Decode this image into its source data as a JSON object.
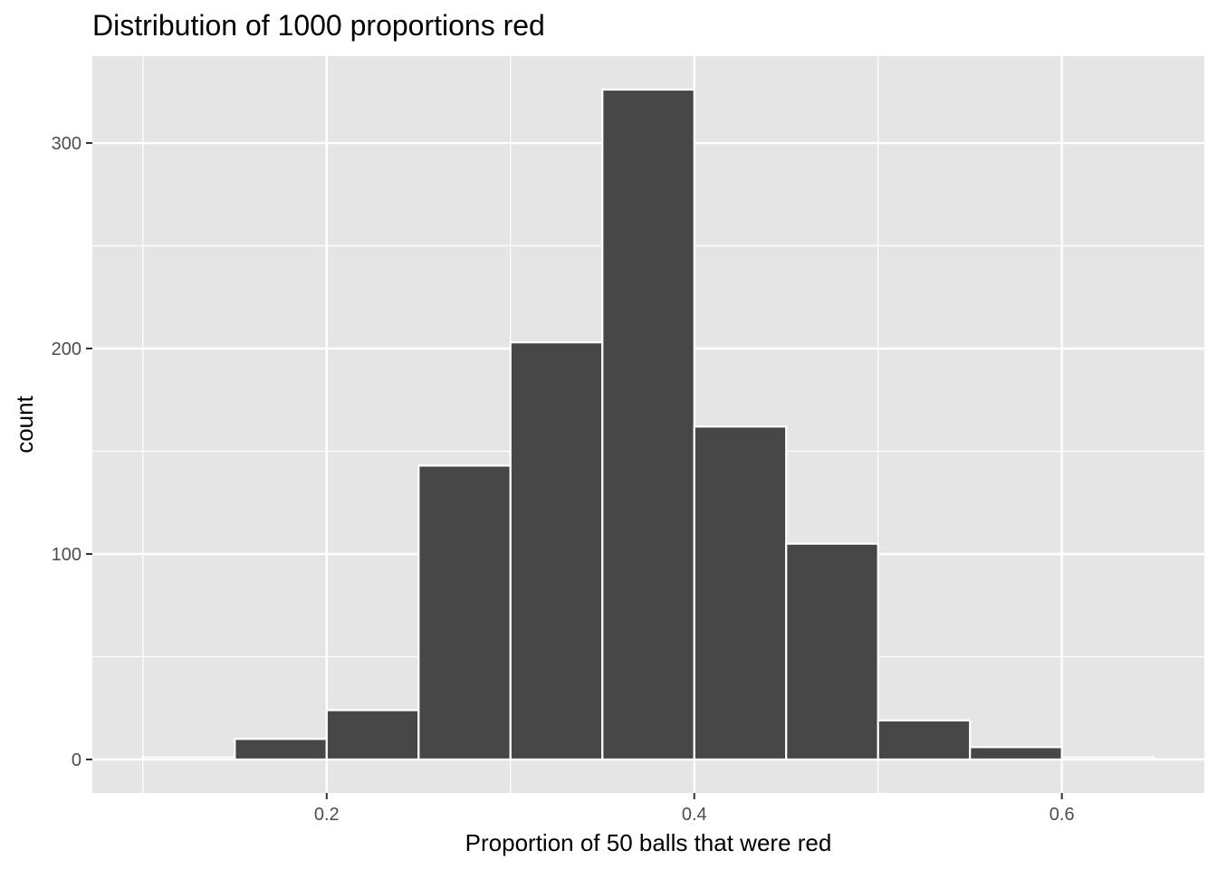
{
  "chart_data": {
    "type": "bar",
    "subtype": "histogram",
    "title": "Distribution of 1000 proportions red",
    "xlabel": "Proportion of 50 balls that were red",
    "ylabel": "count",
    "bin_width": 0.05,
    "bins": [
      {
        "x_start": 0.1,
        "x_end": 0.15,
        "count": 1
      },
      {
        "x_start": 0.15,
        "x_end": 0.2,
        "count": 10
      },
      {
        "x_start": 0.2,
        "x_end": 0.25,
        "count": 24
      },
      {
        "x_start": 0.25,
        "x_end": 0.3,
        "count": 143
      },
      {
        "x_start": 0.3,
        "x_end": 0.35,
        "count": 203
      },
      {
        "x_start": 0.35,
        "x_end": 0.4,
        "count": 326
      },
      {
        "x_start": 0.4,
        "x_end": 0.45,
        "count": 162
      },
      {
        "x_start": 0.45,
        "x_end": 0.5,
        "count": 105
      },
      {
        "x_start": 0.5,
        "x_end": 0.55,
        "count": 19
      },
      {
        "x_start": 0.55,
        "x_end": 0.6,
        "count": 6
      },
      {
        "x_start": 0.6,
        "x_end": 0.65,
        "count": 1
      }
    ],
    "x_ticks": [
      0.2,
      0.4,
      0.6
    ],
    "x_tick_labels": [
      "0.2",
      "0.4",
      "0.6"
    ],
    "y_ticks": [
      0,
      100,
      200,
      300
    ],
    "y_tick_labels": [
      "0",
      "100",
      "200",
      "300"
    ],
    "xlim": [
      0.0725,
      0.6775
    ],
    "ylim": [
      -16.3,
      342.3
    ],
    "grid": true,
    "colors": {
      "bar_fill": "#474747",
      "bar_border": "#ffffff",
      "panel_background": "#e5e5e5",
      "grid": "#ffffff"
    }
  }
}
